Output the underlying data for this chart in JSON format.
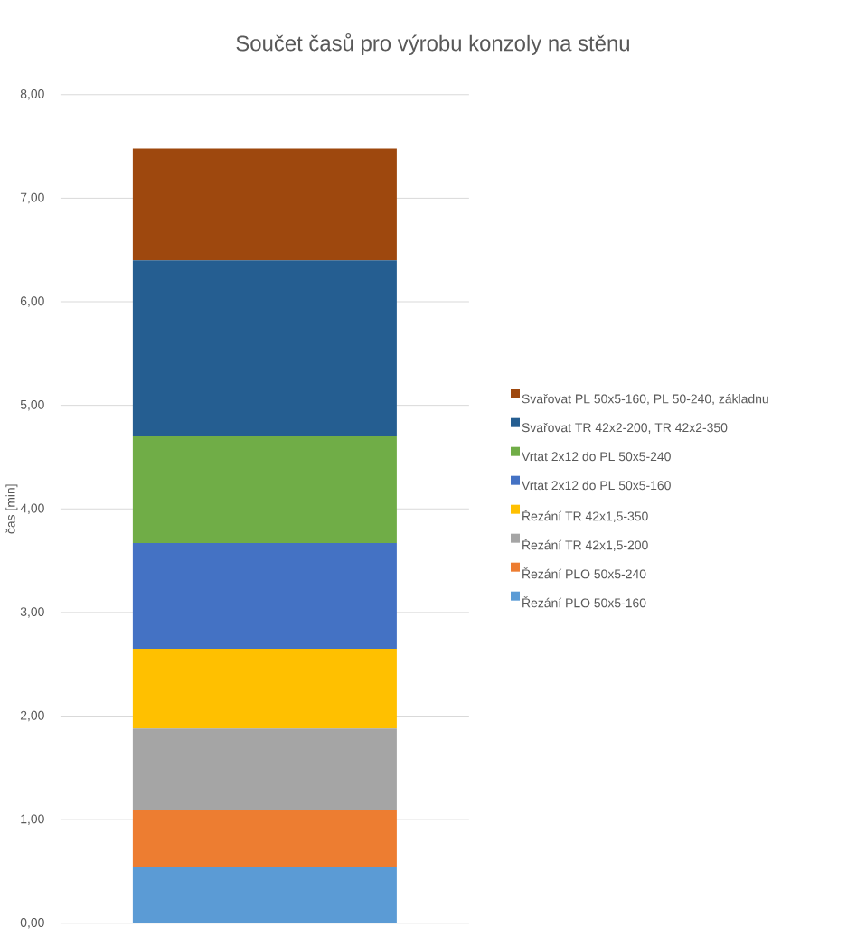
{
  "chart_data": {
    "type": "bar",
    "stacked": true,
    "title": "Součet časů pro výrobu konzoly na stěnu",
    "ylabel": "čas [min]",
    "categories": [
      null
    ],
    "series": [
      {
        "name": "Řezání PLO 50x5-160",
        "color": "#5b9bd5",
        "values": [
          0.54
        ]
      },
      {
        "name": "Řezání PLO 50x5-240",
        "color": "#ed7d31",
        "values": [
          0.55
        ]
      },
      {
        "name": "Řezání TR 42x1,5-200",
        "color": "#a5a5a5",
        "values": [
          0.79
        ]
      },
      {
        "name": "Řezání TR 42x1,5-350",
        "color": "#ffc000",
        "values": [
          0.77
        ]
      },
      {
        "name": "Vrtat 2x12 do PL 50x5-160",
        "color": "#4472c4",
        "values": [
          1.02
        ]
      },
      {
        "name": "Vrtat 2x12 do PL 50x5-240",
        "color": "#70ad47",
        "values": [
          1.03
        ]
      },
      {
        "name": "Svařovat TR 42x2-200, TR 42x2-350",
        "color": "#255e91",
        "values": [
          1.7
        ]
      },
      {
        "name": "Svařovat PL 50x5-160, PL 50-240, základnu",
        "color": "#9e480e",
        "values": [
          1.08
        ]
      }
    ],
    "ylim": [
      0,
      8
    ],
    "yticks": [
      {
        "value": 0,
        "label": "0,00"
      },
      {
        "value": 1,
        "label": "1,00"
      },
      {
        "value": 2,
        "label": "2,00"
      },
      {
        "value": 3,
        "label": "3,00"
      },
      {
        "value": 4,
        "label": "4,00"
      },
      {
        "value": 5,
        "label": "5,00"
      },
      {
        "value": 6,
        "label": "6,00"
      },
      {
        "value": 7,
        "label": "7,00"
      },
      {
        "value": 8,
        "label": "8,00"
      }
    ],
    "grid": "y",
    "legend": "right"
  }
}
